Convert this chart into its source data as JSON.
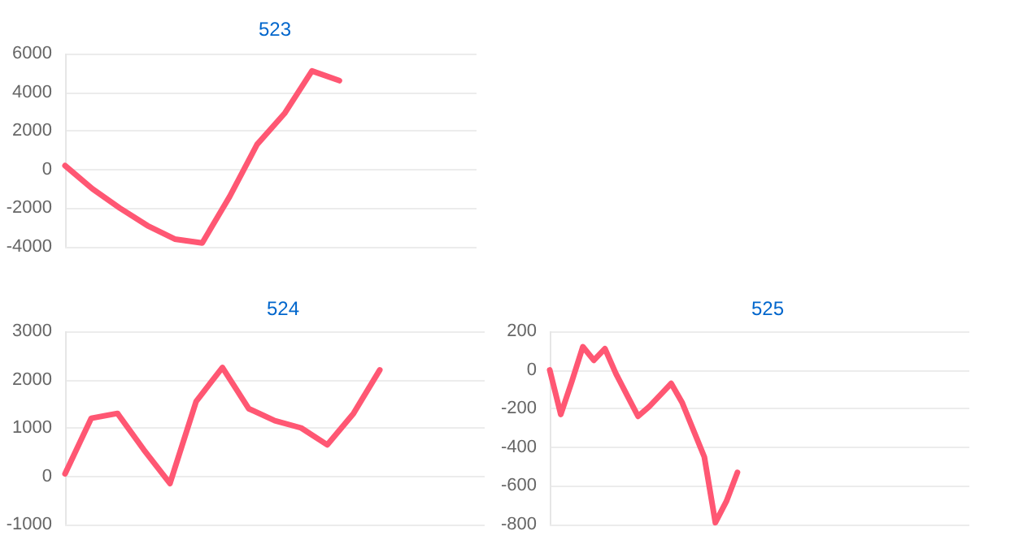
{
  "chart_data": [
    {
      "type": "line",
      "title": "523",
      "categories": [
        null,
        null,
        null,
        null,
        null,
        null,
        null,
        null,
        null,
        null,
        null,
        null,
        null,
        null,
        null,
        null
      ],
      "values": [
        200,
        -1000,
        -2000,
        -2900,
        -3600,
        -3800,
        -1400,
        1300,
        2900,
        5100,
        4600,
        null,
        null,
        null,
        null,
        null
      ],
      "color": "#ff5773",
      "ylim": [
        -4000,
        6000
      ],
      "yticks": [
        -4000,
        -2000,
        0,
        2000,
        4000,
        6000
      ],
      "grid": "y",
      "tick_labels": "y",
      "marker": "none"
    },
    {
      "type": "line",
      "title": "524",
      "categories": [
        null,
        null,
        null,
        null,
        null,
        null,
        null,
        null,
        null,
        null,
        null,
        null,
        null,
        null,
        null,
        null,
        null
      ],
      "values": [
        50,
        1200,
        1300,
        550,
        -150,
        1550,
        2250,
        1400,
        1150,
        1000,
        650,
        1300,
        2200,
        null,
        null,
        null,
        null
      ],
      "color": "#ff5773",
      "ylim": [
        -1000,
        3000
      ],
      "yticks": [
        -1000,
        0,
        1000,
        2000,
        3000
      ],
      "grid": "y",
      "tick_labels": "y",
      "marker": "none"
    },
    {
      "type": "line",
      "title": "525",
      "categories": [
        null,
        null,
        null,
        null,
        null,
        null,
        null,
        null,
        null,
        null,
        null,
        null,
        null,
        null,
        null,
        null,
        null,
        null,
        null,
        null,
        null,
        null,
        null,
        null,
        null,
        null,
        null,
        null,
        null,
        null,
        null,
        null,
        null,
        null,
        null,
        null,
        null,
        null,
        null
      ],
      "values": [
        0,
        -230,
        -60,
        120,
        50,
        110,
        -20,
        -130,
        -240,
        -190,
        -130,
        -70,
        -170,
        -310,
        -450,
        -790,
        -680,
        -530,
        null,
        null,
        null,
        null,
        null,
        null,
        null,
        null,
        null,
        null,
        null,
        null,
        null,
        null,
        null,
        null,
        null,
        null,
        null,
        null,
        null
      ],
      "color": "#ff5773",
      "ylim": [
        -800,
        200
      ],
      "yticks": [
        -800,
        -600,
        -400,
        -200,
        0,
        200
      ],
      "grid": "y",
      "tick_labels": "y",
      "marker": "none"
    }
  ]
}
